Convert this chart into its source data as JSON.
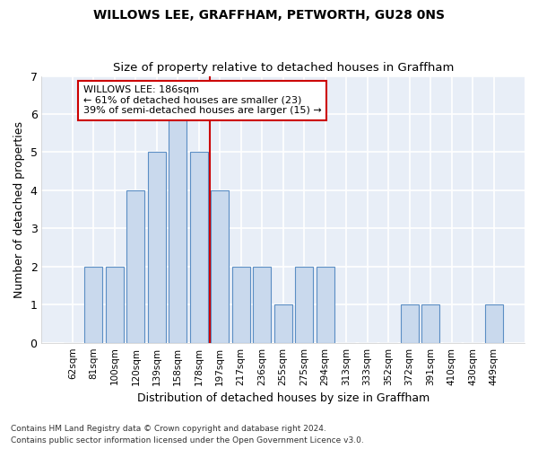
{
  "title": "WILLOWS LEE, GRAFFHAM, PETWORTH, GU28 0NS",
  "subtitle": "Size of property relative to detached houses in Graffham",
  "xlabel": "Distribution of detached houses by size in Graffham",
  "ylabel": "Number of detached properties",
  "footer1": "Contains HM Land Registry data © Crown copyright and database right 2024.",
  "footer2": "Contains public sector information licensed under the Open Government Licence v3.0.",
  "categories": [
    "62sqm",
    "81sqm",
    "100sqm",
    "120sqm",
    "139sqm",
    "158sqm",
    "178sqm",
    "197sqm",
    "217sqm",
    "236sqm",
    "255sqm",
    "275sqm",
    "294sqm",
    "313sqm",
    "333sqm",
    "352sqm",
    "372sqm",
    "391sqm",
    "410sqm",
    "430sqm",
    "449sqm"
  ],
  "values": [
    0,
    2,
    2,
    4,
    5,
    6,
    5,
    4,
    2,
    2,
    1,
    2,
    2,
    0,
    0,
    0,
    1,
    1,
    0,
    0,
    1
  ],
  "bar_color": "#c9d9ed",
  "bar_edge_color": "#5b8ec4",
  "background_color": "#e8eef7",
  "grid_color": "#ffffff",
  "fig_background": "#ffffff",
  "vline_x": 6.5,
  "vline_color": "#cc0000",
  "annotation_text": "WILLOWS LEE: 186sqm\n← 61% of detached houses are smaller (23)\n39% of semi-detached houses are larger (15) →",
  "annotation_box_color": "#ffffff",
  "annotation_box_edge_color": "#cc0000",
  "ylim": [
    0,
    7
  ],
  "yticks": [
    0,
    1,
    2,
    3,
    4,
    5,
    6,
    7
  ]
}
